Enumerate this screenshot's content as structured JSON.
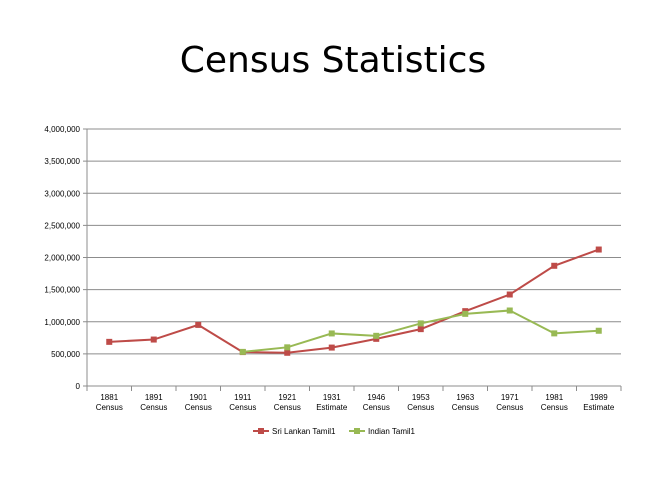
{
  "chart_data": {
    "type": "line",
    "title": "Census Statistics",
    "xlabel": "",
    "ylabel": "",
    "ylim": [
      0,
      4000000
    ],
    "yticks": [
      0,
      500000,
      1000000,
      1500000,
      2000000,
      2500000,
      3000000,
      3500000,
      4000000
    ],
    "ytick_labels": [
      "0",
      "500,000",
      "1,000,000",
      "1,500,000",
      "2,000,000",
      "2,500,000",
      "3,000,000",
      "3,500,000",
      "4,000,000"
    ],
    "grid": true,
    "legend_position": "bottom",
    "categories": [
      [
        "1881",
        "Census"
      ],
      [
        "1891",
        "Census"
      ],
      [
        "1901",
        "Census"
      ],
      [
        "1911",
        "Census"
      ],
      [
        "1921",
        "Census"
      ],
      [
        "1931",
        "Estimate"
      ],
      [
        "1946",
        "Census"
      ],
      [
        "1953",
        "Census"
      ],
      [
        "1963",
        "Census"
      ],
      [
        "1971",
        "Census"
      ],
      [
        "1981",
        "Census"
      ],
      [
        "1989",
        "Estimate"
      ]
    ],
    "series": [
      {
        "name": "Sri Lankan Tamil1",
        "color": "#be4b48",
        "values": [
          687000,
          723000,
          951000,
          528000,
          517000,
          598000,
          734000,
          885000,
          1165000,
          1424000,
          1871000,
          2124000
        ]
      },
      {
        "name": "Indian Tamil1",
        "color": "#98b954",
        "values": [
          null,
          null,
          null,
          531000,
          602000,
          818000,
          781000,
          974000,
          1123000,
          1175000,
          819000,
          860000
        ]
      }
    ]
  }
}
